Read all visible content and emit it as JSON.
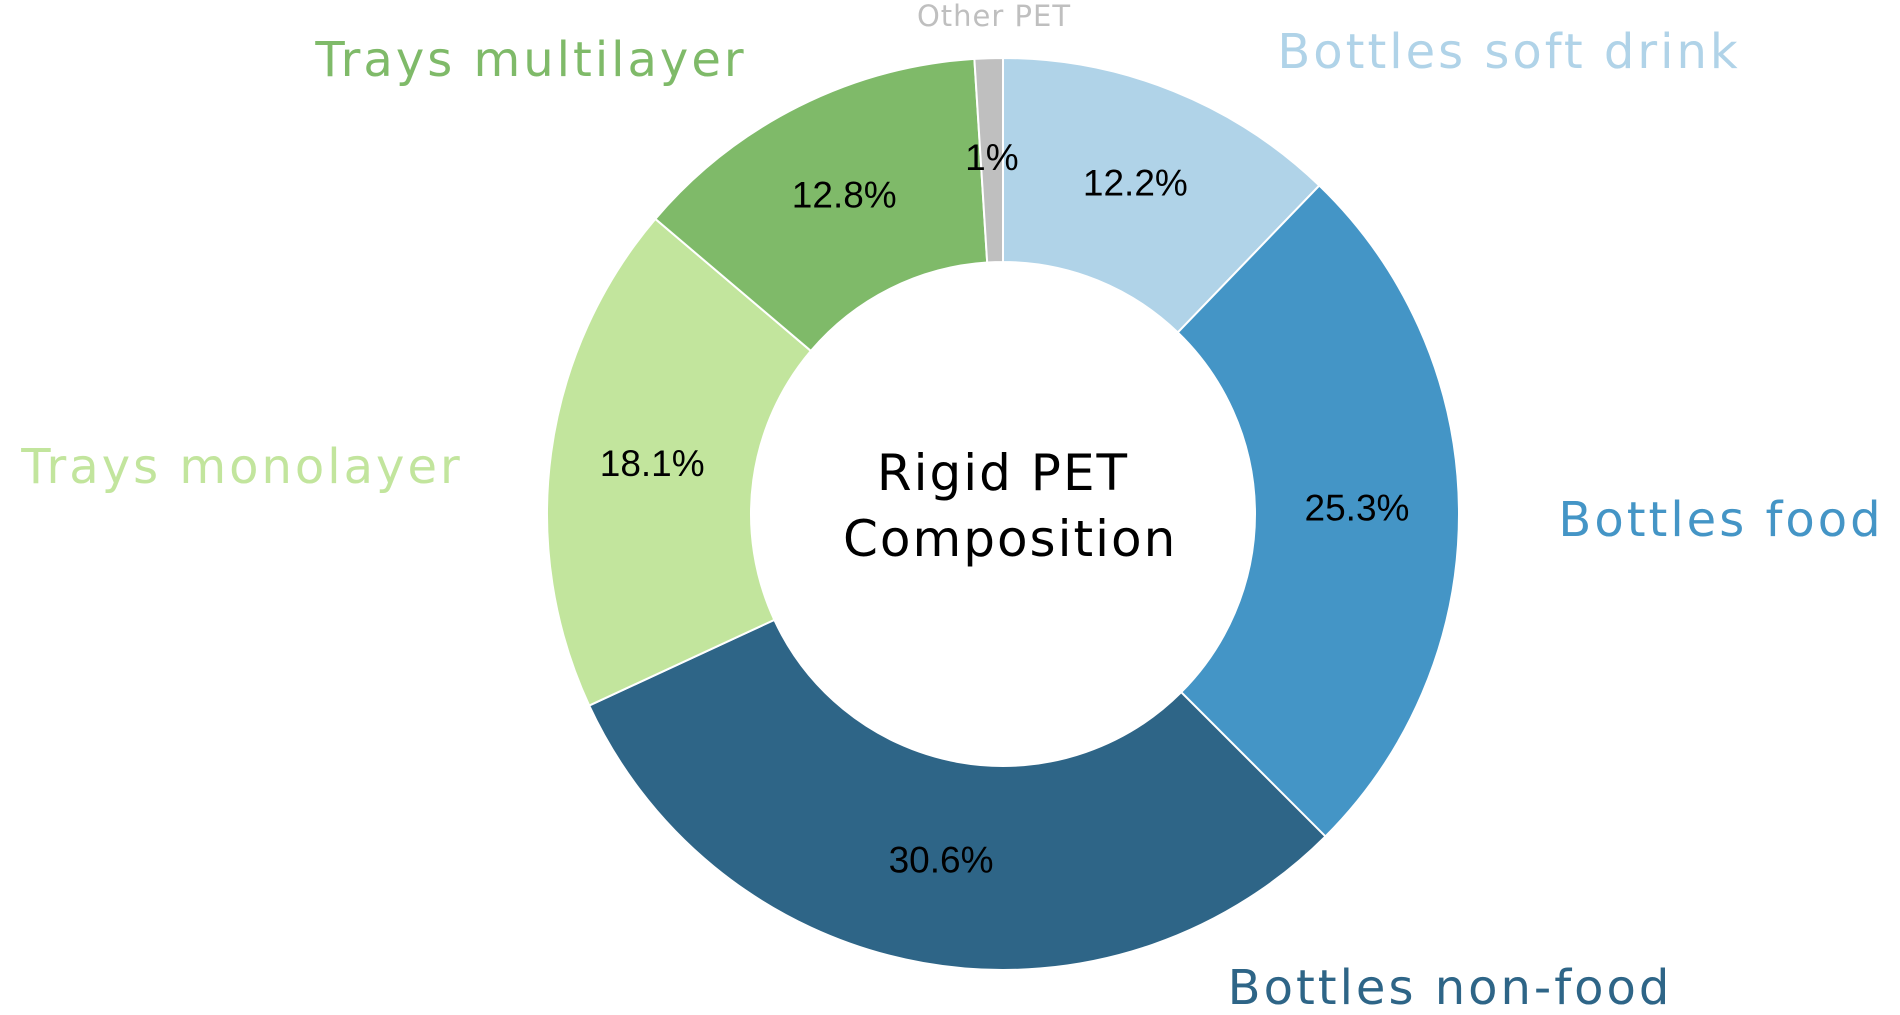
{
  "chart_data": {
    "type": "donut",
    "title": "Rigid PET Composition",
    "categories": [
      "Bottles soft drink",
      "Bottles food",
      "Bottles non-food",
      "Trays monolayer",
      "Trays multilayer",
      "Other PET"
    ],
    "values": [
      12.2,
      25.3,
      30.6,
      18.1,
      12.8,
      1
    ],
    "value_labels": [
      "12.2%",
      "25.3%",
      "30.6%",
      "18.1%",
      "12.8%",
      "1%"
    ],
    "colors": [
      "#b0d3e8",
      "#4495c6",
      "#2e6587",
      "#c2e59d",
      "#7fba69",
      "#bfbfbf"
    ]
  }
}
